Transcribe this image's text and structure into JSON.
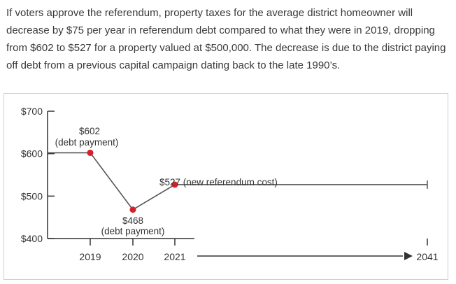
{
  "paragraph": "If voters approve the referendum, property taxes for the average district homeowner will decrease by $75 per year in referendum debt compared to what they were in 2019, dropping from $602 to $527 for a property valued at $500,000. The decrease is due to the district paying off debt from a previous capital campaign dating back to the late 1990’s.",
  "chart_data": {
    "type": "line",
    "title": "",
    "xlabel": "",
    "ylabel": "",
    "ylim": [
      400,
      700
    ],
    "y_ticks": [
      "$700",
      "$600",
      "$500",
      "$400"
    ],
    "y_tick_values": [
      700,
      600,
      500,
      400
    ],
    "x_ticks": [
      "2019",
      "2020",
      "2021",
      "2041"
    ],
    "series": [
      {
        "points": [
          {
            "x": "2018",
            "y": 602
          },
          {
            "x": "2019",
            "y": 602
          },
          {
            "x": "2020",
            "y": 468
          },
          {
            "x": "2021",
            "y": 527
          },
          {
            "x": "2041",
            "y": 527
          }
        ]
      }
    ],
    "annotations": [
      {
        "line1": "$602",
        "line2": "(debt payment)",
        "at_x": "2019",
        "at_y": 602
      },
      {
        "line1": "$468",
        "line2": "(debt payment)",
        "at_x": "2020",
        "at_y": 468
      },
      {
        "line1": "$527 (new referendum cost)",
        "at_x": "2021",
        "at_y": 527
      }
    ],
    "grid": false,
    "colors": {
      "line": "#555555",
      "marker": "#d6202a",
      "axis": "#333333"
    }
  }
}
